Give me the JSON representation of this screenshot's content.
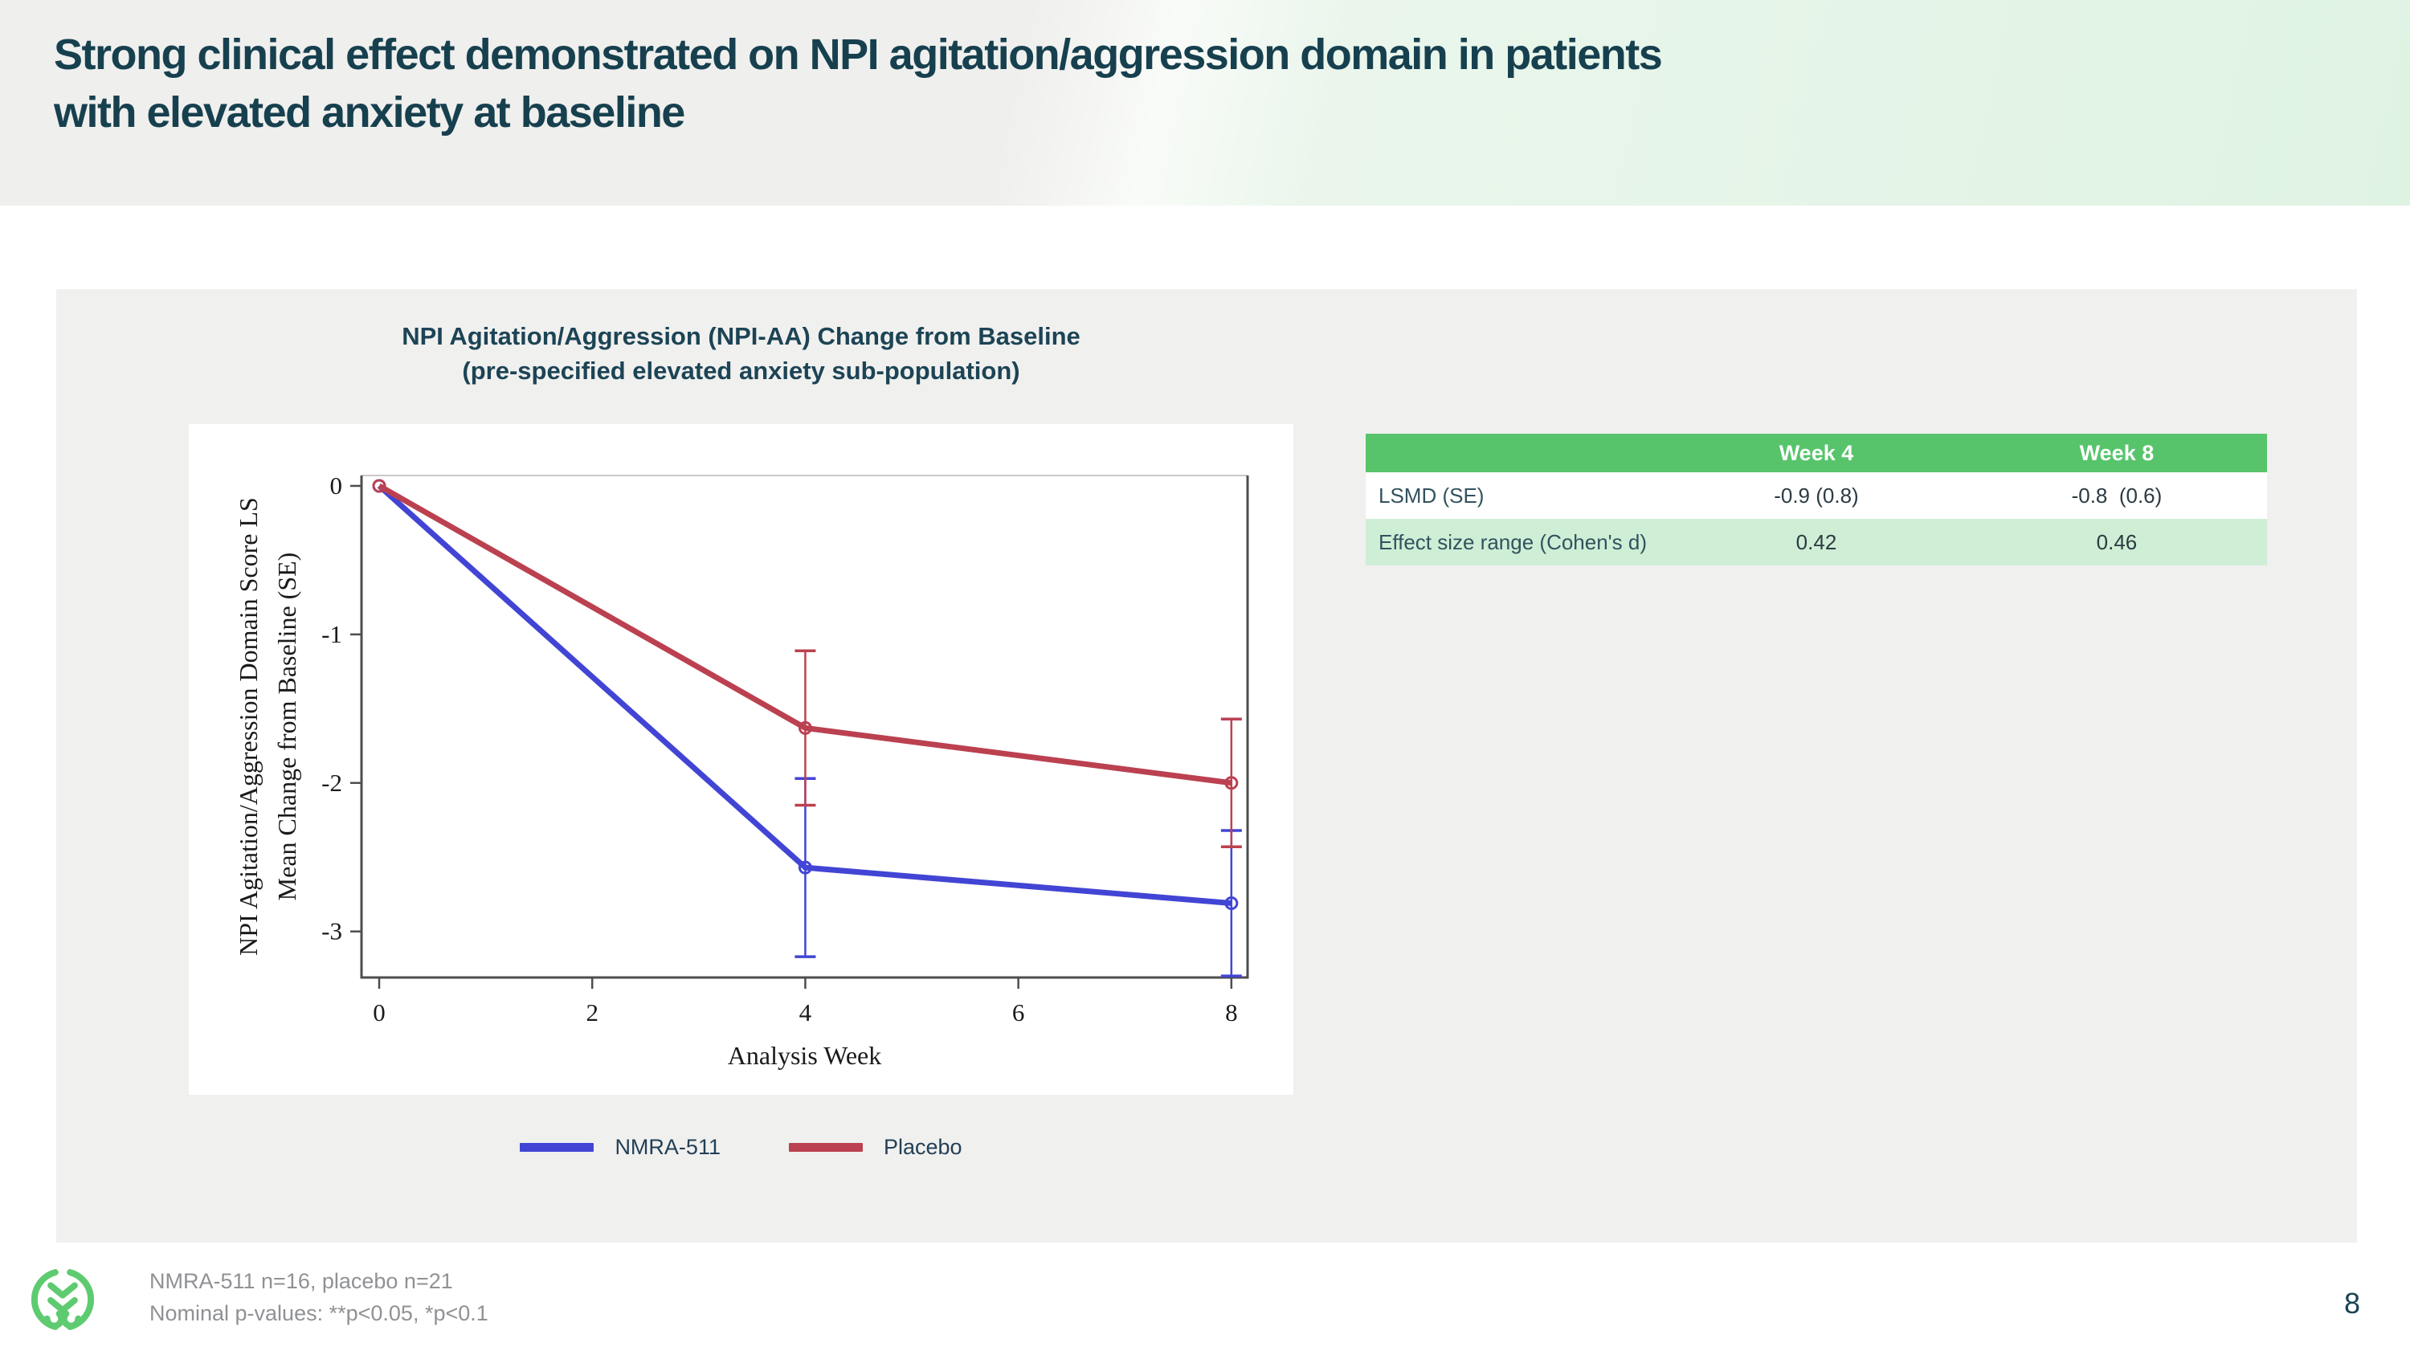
{
  "slide": {
    "title_line1": "Strong clinical effect demonstrated on NPI agitation/aggression domain in patients",
    "title_line2": "with elevated anxiety at baseline",
    "page_number": "8",
    "footnotes": [
      "NMRA-511 n=16, placebo n=21",
      "Nominal p-values: **p<0.05, *p<0.1"
    ]
  },
  "colors": {
    "title_teal": "#17404f",
    "table_header_green": "#57c46b",
    "table_light_green": "#cfeed6",
    "logo_green": "#5ecb70",
    "nmra_blue": "#4245d4",
    "placebo_red": "#bb4150"
  },
  "table": {
    "columns": [
      "Week 4",
      "Week 8"
    ],
    "rows": [
      {
        "label": "LSMD (SE)",
        "values": [
          "-0.9 (0.8)",
          "-0.8  (0.6)"
        ]
      },
      {
        "label": "Effect size range (Cohen's d)",
        "values": [
          "0.42",
          "0.46"
        ]
      }
    ]
  },
  "chart_data": {
    "type": "line",
    "title_line1": "NPI Agitation/Aggression (NPI-AA) Change from Baseline",
    "title_line2": "(pre-specified elevated anxiety sub-population)",
    "xlabel": "Analysis Week",
    "ylabel_line1": "NPI Agitation/Aggression Domain Score LS",
    "ylabel_line2": "Mean Change from Baseline (SE)",
    "x": [
      0,
      4,
      8
    ],
    "xticks": [
      0,
      2,
      4,
      6,
      8
    ],
    "yticks": [
      0,
      -1,
      -2,
      -3
    ],
    "xlim": [
      -0.166,
      8.152
    ],
    "ylim": [
      0.07,
      -3.31
    ],
    "grid": false,
    "marker": "open-circle",
    "legend_position": "bottom",
    "series": [
      {
        "name": "NMRA-511",
        "color": "#4245d4",
        "values": [
          0,
          -2.57,
          -2.81
        ],
        "se": [
          0,
          0.6,
          0.49
        ]
      },
      {
        "name": "Placebo",
        "color": "#bb4150",
        "values": [
          0,
          -1.63,
          -2.0
        ],
        "se": [
          0,
          0.52,
          0.43
        ]
      }
    ]
  }
}
